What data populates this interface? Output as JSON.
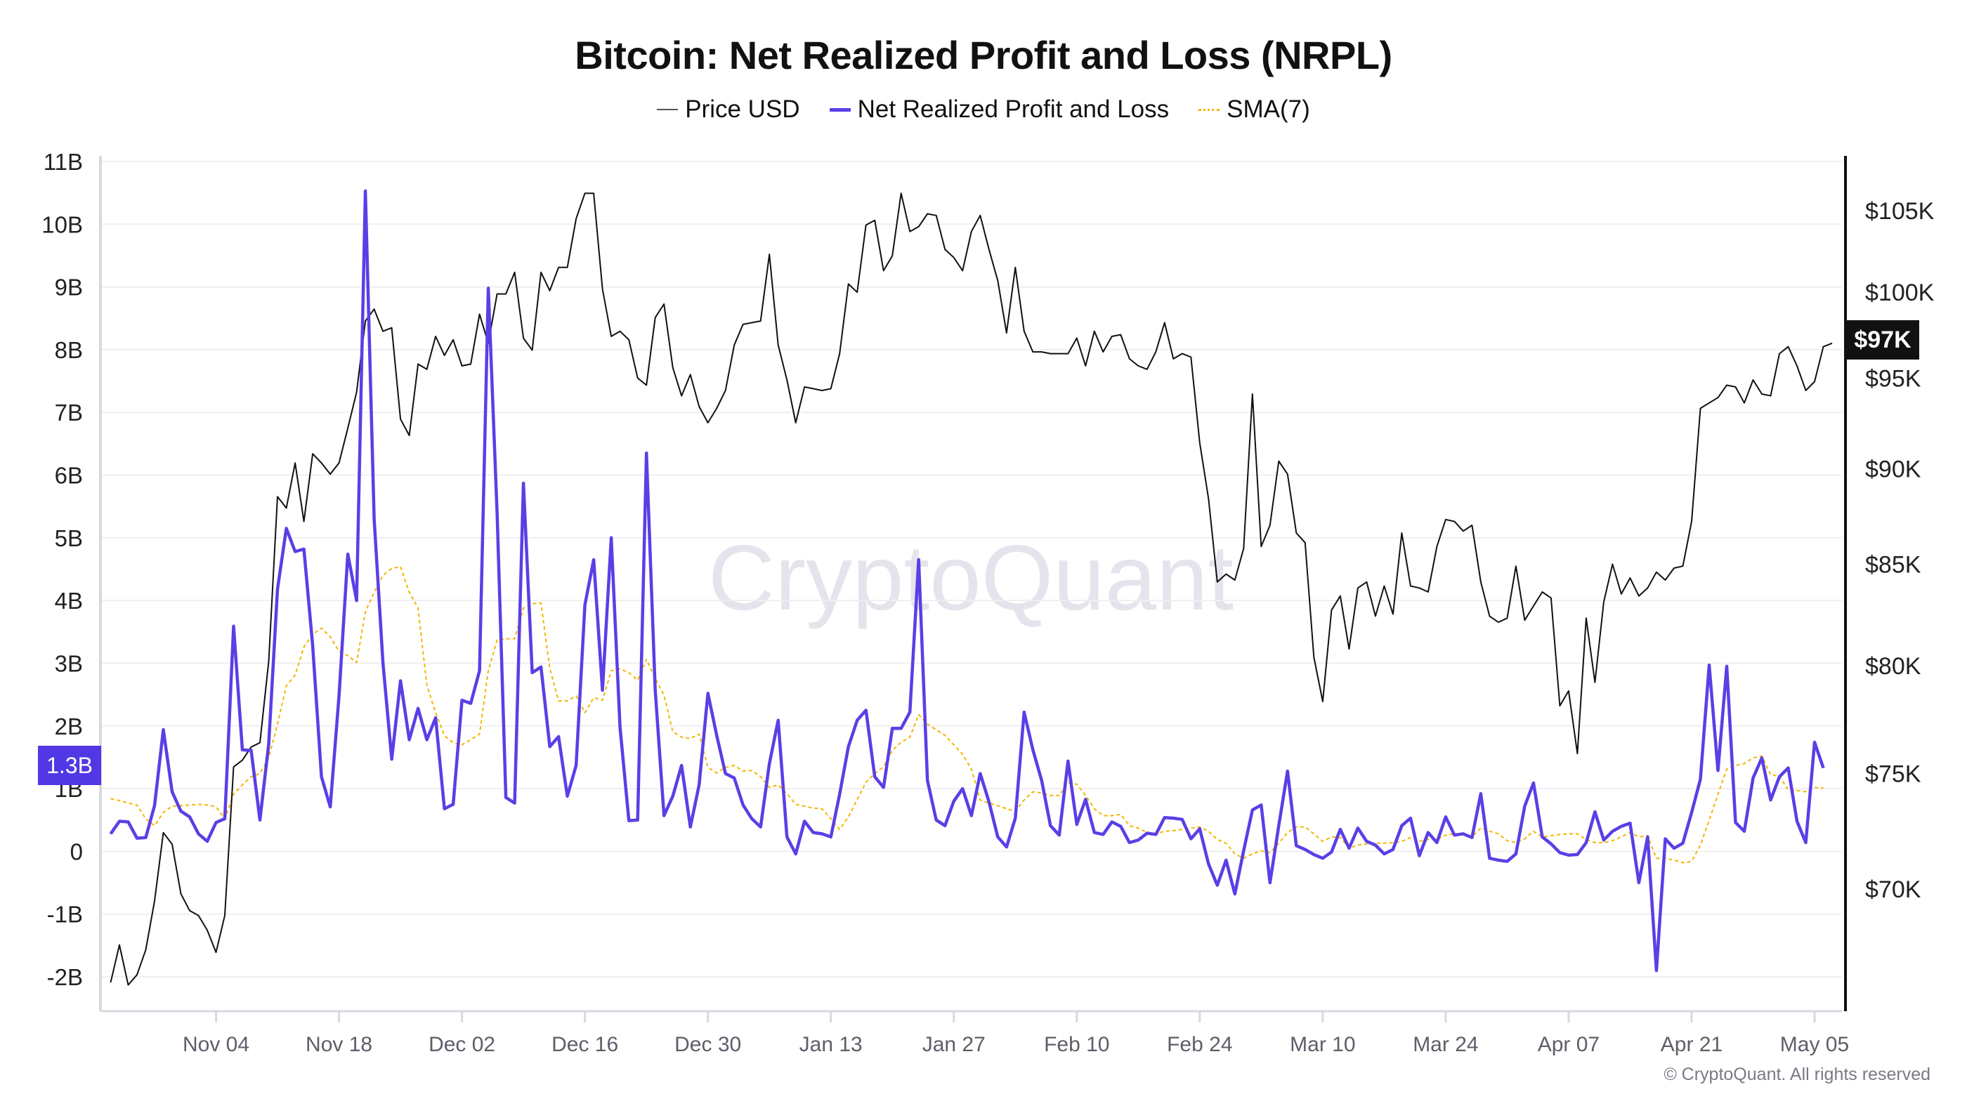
{
  "title": "Bitcoin: Net Realized Profit and Loss (NRPL)",
  "legend": [
    {
      "label": "Price USD",
      "color": "#555555"
    },
    {
      "label": "Net Realized Profit and Loss",
      "color": "#5a3fe6"
    },
    {
      "label": "SMA(7)",
      "color": "#f6b500"
    }
  ],
  "watermark": "CryptoQuant",
  "copyright": "© CryptoQuant. All rights reserved",
  "current_badges": {
    "nrpl": "1.3B",
    "price": "$97K"
  },
  "chart_data": {
    "type": "line",
    "title": "Bitcoin: Net Realized Profit and Loss (NRPL)",
    "legend_position": "top",
    "grid": true,
    "x_tick_labels": [
      "Nov 04",
      "Nov 18",
      "Dec 02",
      "Dec 16",
      "Dec 30",
      "Jan 13",
      "Jan 27",
      "Feb 10",
      "Feb 24",
      "Mar 10",
      "Mar 24",
      "Apr 07",
      "Apr 21",
      "May 05"
    ],
    "left_axis": {
      "unit": "USD",
      "ylim": [
        -2,
        11
      ],
      "tick_labels": [
        "11B",
        "10B",
        "9B",
        "8B",
        "7B",
        "6B",
        "5B",
        "4B",
        "3B",
        "2B",
        "1B",
        "0",
        "-1B",
        "-2B"
      ],
      "tick_values": [
        11,
        10,
        9,
        8,
        7,
        6,
        5,
        4,
        3,
        2,
        1,
        0,
        -1,
        -2
      ]
    },
    "right_axis": {
      "scale": "log",
      "tick_labels": [
        "$105K",
        "$100K",
        "$95K",
        "$90K",
        "$85K",
        "$80K",
        "$75K",
        "$70K"
      ],
      "tick_values": [
        105,
        100,
        95,
        90,
        85,
        80,
        75,
        70
      ]
    },
    "x": [
      "Oct 23",
      "Oct 24",
      "Oct 25",
      "Oct 26",
      "Oct 27",
      "Oct 28",
      "Oct 29",
      "Oct 30",
      "Oct 31",
      "Nov 01",
      "Nov 02",
      "Nov 03",
      "Nov 04",
      "Nov 05",
      "Nov 06",
      "Nov 07",
      "Nov 08",
      "Nov 09",
      "Nov 10",
      "Nov 11",
      "Nov 12",
      "Nov 13",
      "Nov 14",
      "Nov 15",
      "Nov 16",
      "Nov 17",
      "Nov 18",
      "Nov 19",
      "Nov 20",
      "Nov 21",
      "Nov 22",
      "Nov 23",
      "Nov 24",
      "Nov 25",
      "Nov 26",
      "Nov 27",
      "Nov 28",
      "Nov 29",
      "Nov 30",
      "Dec 01",
      "Dec 02",
      "Dec 03",
      "Dec 04",
      "Dec 05",
      "Dec 06",
      "Dec 07",
      "Dec 08",
      "Dec 09",
      "Dec 10",
      "Dec 11",
      "Dec 12",
      "Dec 13",
      "Dec 14",
      "Dec 15",
      "Dec 16",
      "Dec 17",
      "Dec 18",
      "Dec 19",
      "Dec 20",
      "Dec 21",
      "Dec 22",
      "Dec 23",
      "Dec 24",
      "Dec 25",
      "Dec 26",
      "Dec 27",
      "Dec 28",
      "Dec 29",
      "Dec 30",
      "Dec 31",
      "Jan 01",
      "Jan 02",
      "Jan 03",
      "Jan 04",
      "Jan 05",
      "Jan 06",
      "Jan 07",
      "Jan 08",
      "Jan 09",
      "Jan 10",
      "Jan 11",
      "Jan 12",
      "Jan 13",
      "Jan 14",
      "Jan 15",
      "Jan 16",
      "Jan 17",
      "Jan 18",
      "Jan 19",
      "Jan 20",
      "Jan 21",
      "Jan 22",
      "Jan 23",
      "Jan 24",
      "Jan 25",
      "Jan 26",
      "Jan 27",
      "Jan 28",
      "Jan 29",
      "Jan 30",
      "Jan 31",
      "Feb 01",
      "Feb 02",
      "Feb 03",
      "Feb 04",
      "Feb 05",
      "Feb 06",
      "Feb 07",
      "Feb 08",
      "Feb 09",
      "Feb 10",
      "Feb 11",
      "Feb 12",
      "Feb 13",
      "Feb 14",
      "Feb 15",
      "Feb 16",
      "Feb 17",
      "Feb 18",
      "Feb 19",
      "Feb 20",
      "Feb 21",
      "Feb 22",
      "Feb 23",
      "Feb 24",
      "Feb 25",
      "Feb 26",
      "Feb 27",
      "Feb 28",
      "Mar 01",
      "Mar 02",
      "Mar 03",
      "Mar 04",
      "Mar 05",
      "Mar 06",
      "Mar 07",
      "Mar 08",
      "Mar 09",
      "Mar 10",
      "Mar 11",
      "Mar 12",
      "Mar 13",
      "Mar 14",
      "Mar 15",
      "Mar 16",
      "Mar 17",
      "Mar 18",
      "Mar 19",
      "Mar 20",
      "Mar 21",
      "Mar 22",
      "Mar 23",
      "Mar 24",
      "Mar 25",
      "Mar 26",
      "Mar 27",
      "Mar 28",
      "Mar 29",
      "Mar 30",
      "Mar 31",
      "Apr 01",
      "Apr 02",
      "Apr 03",
      "Apr 04",
      "Apr 05",
      "Apr 06",
      "Apr 07",
      "Apr 08",
      "Apr 09",
      "Apr 10",
      "Apr 11",
      "Apr 12",
      "Apr 13",
      "Apr 14",
      "Apr 15",
      "Apr 16",
      "Apr 17",
      "Apr 18",
      "Apr 19",
      "Apr 20",
      "Apr 21",
      "Apr 22",
      "Apr 23",
      "Apr 24",
      "Apr 25",
      "Apr 26",
      "Apr 27",
      "Apr 28",
      "Apr 29",
      "Apr 30",
      "May 01",
      "May 02",
      "May 03",
      "May 04",
      "May 05",
      "May 06",
      "May 07"
    ],
    "series": [
      {
        "name": "Price USD",
        "axis": "right",
        "unit": "K USD",
        "color": "#111111",
        "values": [
          66.2,
          67.7,
          66.1,
          66.5,
          67.5,
          69.5,
          72.4,
          71.9,
          69.8,
          69.1,
          68.9,
          68.3,
          67.4,
          68.9,
          75.3,
          75.6,
          76.2,
          76.4,
          80.2,
          88.5,
          87.9,
          90.3,
          87.2,
          90.8,
          90.3,
          89.7,
          90.3,
          92.2,
          94.2,
          98.3,
          99.0,
          97.7,
          97.9,
          92.7,
          91.8,
          95.8,
          95.5,
          97.4,
          96.3,
          97.2,
          95.7,
          95.8,
          98.7,
          97.0,
          99.9,
          99.9,
          101.2,
          97.3,
          96.6,
          101.2,
          100.1,
          101.5,
          101.5,
          104.5,
          106.1,
          106.1,
          100.2,
          97.4,
          97.7,
          97.2,
          95.0,
          94.6,
          98.5,
          99.3,
          95.6,
          94.0,
          95.2,
          93.4,
          92.5,
          93.3,
          94.3,
          96.9,
          98.1,
          98.2,
          98.3,
          102.3,
          96.9,
          94.9,
          92.5,
          94.5,
          94.4,
          94.3,
          94.4,
          96.4,
          100.5,
          100.0,
          104.1,
          104.4,
          101.3,
          102.2,
          106.1,
          103.7,
          104.0,
          104.8,
          104.7,
          102.6,
          102.1,
          101.3,
          103.7,
          104.7,
          102.6,
          100.7,
          97.6,
          101.5,
          97.7,
          96.5,
          96.5,
          96.4,
          96.4,
          96.4,
          97.3,
          95.7,
          97.7,
          96.5,
          97.4,
          97.5,
          96.1,
          95.7,
          95.5,
          96.5,
          98.2,
          96.1,
          96.4,
          96.2,
          91.4,
          88.4,
          84.1,
          84.5,
          84.2,
          85.8,
          94.1,
          85.9,
          87.0,
          90.4,
          89.7,
          86.6,
          86.1,
          80.4,
          78.3,
          82.7,
          83.4,
          80.8,
          83.8,
          84.1,
          82.4,
          83.9,
          82.5,
          86.6,
          83.9,
          83.8,
          83.6,
          85.9,
          87.3,
          87.2,
          86.7,
          87.0,
          84.1,
          82.4,
          82.1,
          82.3,
          84.9,
          82.2,
          82.9,
          83.6,
          83.3,
          78.1,
          78.8,
          75.9,
          82.3,
          79.2,
          83.1,
          85.0,
          83.5,
          84.3,
          83.4,
          83.8,
          84.6,
          84.2,
          84.8,
          84.9,
          87.2,
          93.3,
          93.6,
          93.9,
          94.6,
          94.5,
          93.6,
          94.9,
          94.1,
          94.0,
          96.4,
          96.8,
          95.7,
          94.3,
          94.8,
          96.8,
          97.0
        ]
      },
      {
        "name": "Net Realized Profit and Loss",
        "axis": "left",
        "unit": "B USD",
        "color": "#5a3fe6",
        "values": [
          0.28,
          0.48,
          0.47,
          0.21,
          0.22,
          0.73,
          1.94,
          0.95,
          0.64,
          0.55,
          0.28,
          0.16,
          0.46,
          0.52,
          3.59,
          1.62,
          1.61,
          0.5,
          1.71,
          4.18,
          5.15,
          4.78,
          4.82,
          3.28,
          1.19,
          0.71,
          2.48,
          4.74,
          4.0,
          10.53,
          5.3,
          3.01,
          1.47,
          2.72,
          1.78,
          2.28,
          1.78,
          2.13,
          0.68,
          0.75,
          2.41,
          2.36,
          2.88,
          8.98,
          5.4,
          0.86,
          0.77,
          5.87,
          2.85,
          2.94,
          1.67,
          1.83,
          0.88,
          1.37,
          3.93,
          4.65,
          2.57,
          5.0,
          1.98,
          0.49,
          0.5,
          6.35,
          2.57,
          0.57,
          0.88,
          1.37,
          0.39,
          1.06,
          2.52,
          1.85,
          1.24,
          1.17,
          0.74,
          0.52,
          0.39,
          1.4,
          2.09,
          0.23,
          -0.04,
          0.48,
          0.3,
          0.28,
          0.23,
          0.91,
          1.67,
          2.09,
          2.25,
          1.19,
          1.02,
          1.96,
          1.96,
          2.22,
          4.65,
          1.13,
          0.5,
          0.41,
          0.8,
          1.0,
          0.57,
          1.24,
          0.79,
          0.23,
          0.07,
          0.53,
          2.22,
          1.62,
          1.13,
          0.41,
          0.26,
          1.44,
          0.43,
          0.83,
          0.3,
          0.27,
          0.47,
          0.4,
          0.14,
          0.18,
          0.29,
          0.27,
          0.54,
          0.53,
          0.51,
          0.2,
          0.36,
          -0.2,
          -0.54,
          -0.14,
          -0.68,
          0.01,
          0.66,
          0.74,
          -0.5,
          0.41,
          1.28,
          0.09,
          0.03,
          -0.05,
          -0.11,
          -0.01,
          0.35,
          0.05,
          0.37,
          0.16,
          0.1,
          -0.04,
          0.03,
          0.41,
          0.53,
          -0.07,
          0.3,
          0.14,
          0.55,
          0.26,
          0.28,
          0.22,
          0.92,
          -0.11,
          -0.14,
          -0.16,
          -0.04,
          0.72,
          1.09,
          0.23,
          0.12,
          -0.02,
          -0.06,
          -0.05,
          0.14,
          0.63,
          0.18,
          0.32,
          0.4,
          0.45,
          -0.5,
          0.23,
          -1.9,
          0.2,
          0.05,
          0.13,
          0.62,
          1.15,
          2.97,
          1.29,
          2.95,
          0.46,
          0.32,
          1.17,
          1.49,
          0.82,
          1.19,
          1.33,
          0.48,
          0.14,
          1.74,
          1.33,
          null
        ]
      },
      {
        "name": "SMA(7)",
        "axis": "left",
        "unit": "B USD",
        "color": "#f6b500",
        "values": [
          0.84,
          0.81,
          0.77,
          0.74,
          0.52,
          0.41,
          0.62,
          0.72,
          0.73,
          0.74,
          0.75,
          0.74,
          0.71,
          0.52,
          0.91,
          1.06,
          1.19,
          1.24,
          1.49,
          2.03,
          2.64,
          2.81,
          3.26,
          3.46,
          3.56,
          3.42,
          3.19,
          3.12,
          3.01,
          3.82,
          4.13,
          4.4,
          4.51,
          4.54,
          4.13,
          3.88,
          2.65,
          2.21,
          1.85,
          1.73,
          1.7,
          1.78,
          1.87,
          2.88,
          3.37,
          3.39,
          3.39,
          3.88,
          3.95,
          3.96,
          2.92,
          2.4,
          2.4,
          2.48,
          2.21,
          2.45,
          2.41,
          2.88,
          2.91,
          2.85,
          2.73,
          3.06,
          2.76,
          2.49,
          1.91,
          1.82,
          1.8,
          1.87,
          1.34,
          1.25,
          1.34,
          1.37,
          1.28,
          1.29,
          1.19,
          1.02,
          1.06,
          0.92,
          0.75,
          0.72,
          0.69,
          0.68,
          0.52,
          0.35,
          0.55,
          0.83,
          1.1,
          1.24,
          1.35,
          1.61,
          1.74,
          1.82,
          2.18,
          2.03,
          1.94,
          1.85,
          1.7,
          1.55,
          1.31,
          0.82,
          0.77,
          0.73,
          0.68,
          0.64,
          0.82,
          0.95,
          0.93,
          0.89,
          0.89,
          1.09,
          1.07,
          0.89,
          0.68,
          0.57,
          0.57,
          0.59,
          0.41,
          0.37,
          0.3,
          0.28,
          0.32,
          0.33,
          0.35,
          0.37,
          0.39,
          0.32,
          0.19,
          0.13,
          -0.04,
          -0.11,
          -0.04,
          0.01,
          -0.02,
          0.13,
          0.3,
          0.39,
          0.39,
          0.28,
          0.16,
          0.23,
          0.22,
          0.05,
          0.1,
          0.12,
          0.13,
          0.13,
          0.14,
          0.16,
          0.22,
          0.16,
          0.19,
          0.19,
          0.26,
          0.28,
          0.28,
          0.23,
          0.37,
          0.32,
          0.28,
          0.17,
          0.14,
          0.2,
          0.32,
          0.23,
          0.25,
          0.27,
          0.28,
          0.28,
          0.19,
          0.14,
          0.14,
          0.17,
          0.23,
          0.3,
          0.23,
          0.25,
          -0.11,
          -0.11,
          -0.14,
          -0.18,
          -0.16,
          0.1,
          0.5,
          0.91,
          1.31,
          1.37,
          1.4,
          1.49,
          1.52,
          1.22,
          1.2,
          0.98,
          0.97,
          0.95,
          1.02,
          1.01,
          null
        ]
      }
    ]
  }
}
